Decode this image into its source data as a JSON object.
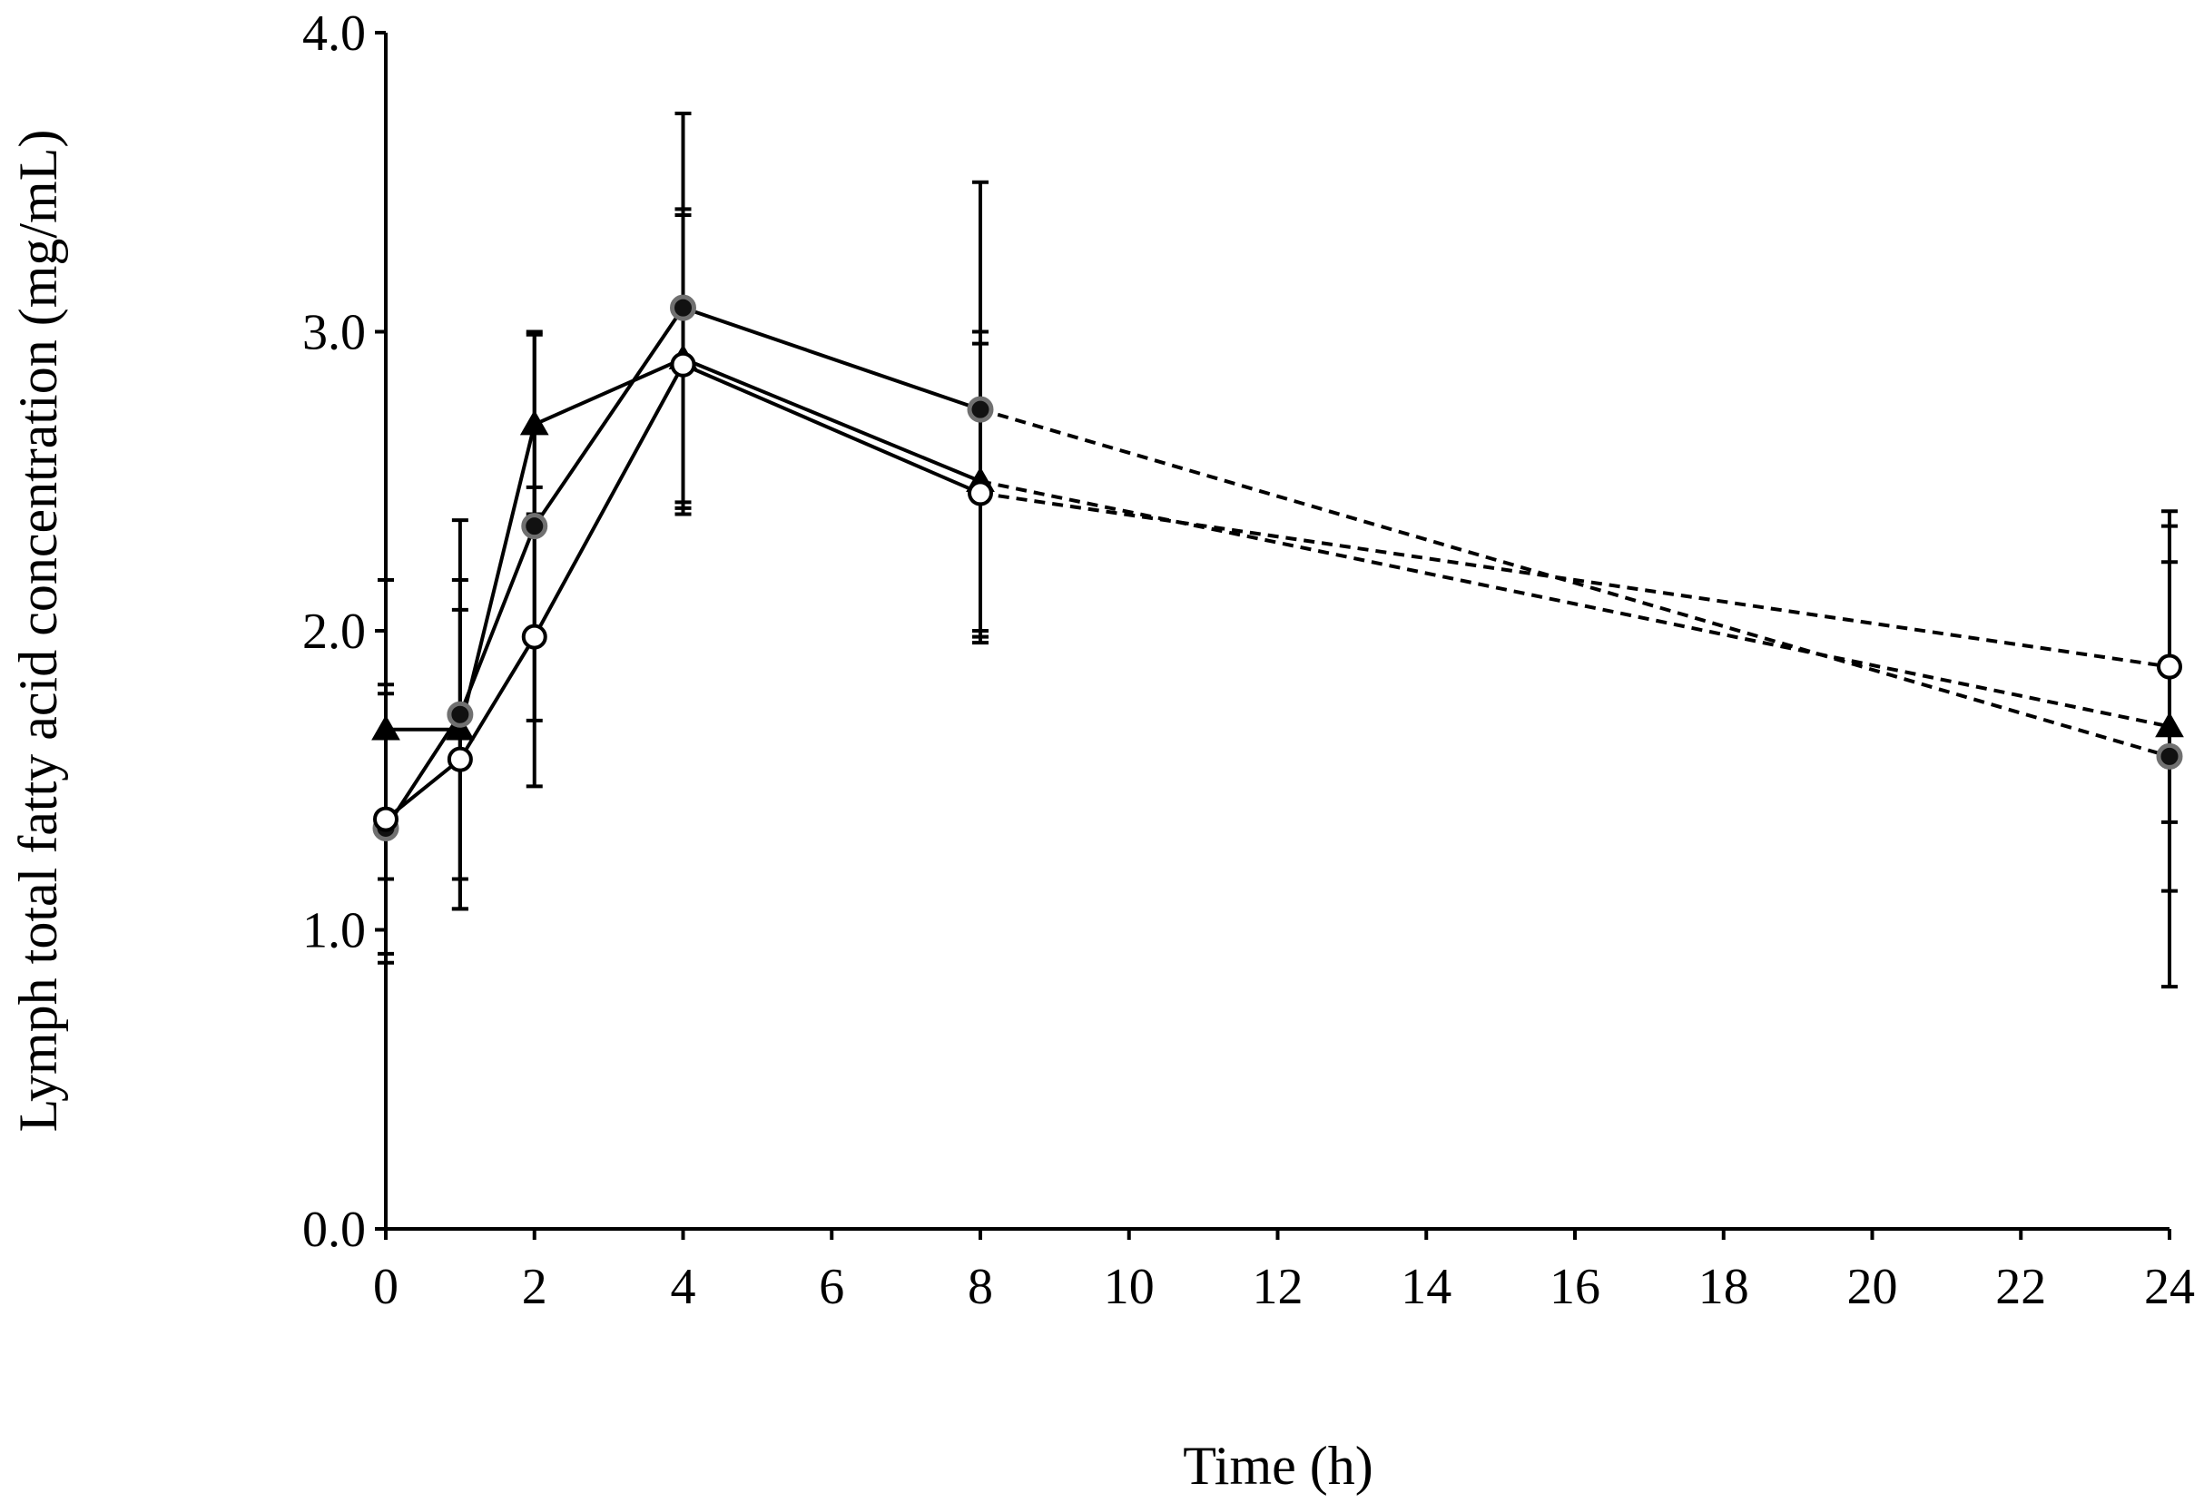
{
  "chart_data": {
    "type": "line",
    "title": "",
    "xlabel": "Time (h)",
    "ylabel": "Lymph total fatty acid concentration (mg/mL)",
    "xlim": [
      0,
      24
    ],
    "ylim": [
      0.0,
      4.0
    ],
    "x_ticks": [
      "0",
      "2",
      "4",
      "6",
      "8",
      "10",
      "12",
      "14",
      "16",
      "18",
      "20",
      "22",
      "24"
    ],
    "y_ticks": [
      "0.0",
      "1.0",
      "2.0",
      "3.0",
      "4.0"
    ],
    "grid": false,
    "legend": "none",
    "series": [
      {
        "name": "triangle-series",
        "marker": "filled-triangle",
        "x": [
          0,
          1,
          2,
          4,
          8,
          24
        ],
        "values": [
          1.67,
          1.67,
          2.69,
          2.91,
          2.5,
          1.68
        ],
        "error": [
          0.5,
          0.5,
          0.3,
          0.5,
          0.5,
          0.55
        ],
        "dashed_from_index": 4
      },
      {
        "name": "grey-filled-circle-series",
        "marker": "grey-filled-circle",
        "x": [
          0,
          1,
          2,
          4,
          8,
          24
        ],
        "values": [
          1.34,
          1.72,
          2.35,
          3.08,
          2.74,
          1.58
        ],
        "error": [
          0.45,
          0.65,
          0.65,
          0.65,
          0.76,
          0.77
        ],
        "dashed_from_index": 4
      },
      {
        "name": "open-circle-series",
        "marker": "open-circle",
        "x": [
          0,
          1,
          2,
          4,
          8,
          24
        ],
        "values": [
          1.37,
          1.57,
          1.98,
          2.89,
          2.46,
          1.88
        ],
        "error": [
          0.45,
          0.5,
          0.5,
          0.5,
          0.5,
          0.52
        ],
        "dashed_from_index": 4
      }
    ]
  }
}
